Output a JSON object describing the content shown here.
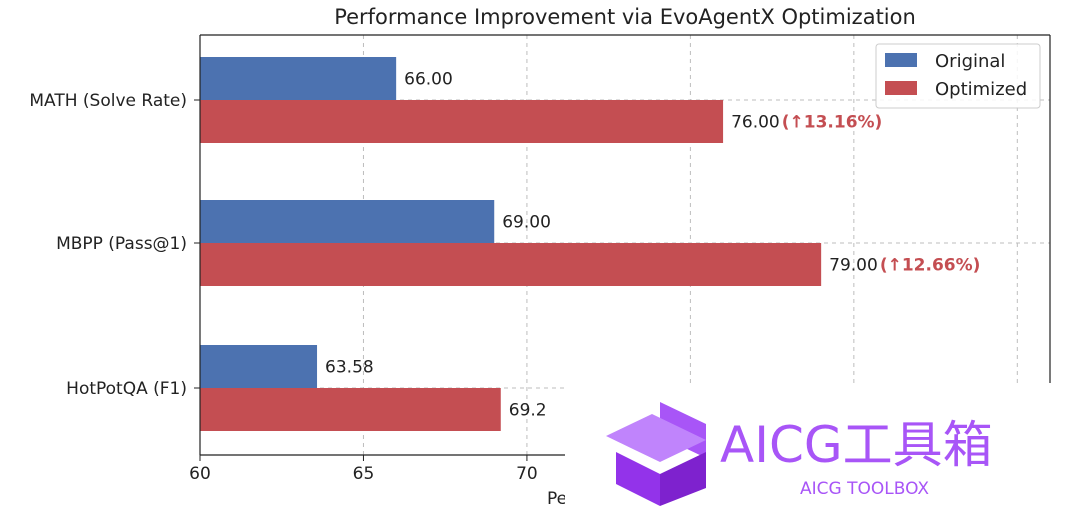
{
  "chart_data": {
    "type": "bar",
    "orientation": "horizontal",
    "title": "Performance Improvement via EvoAgentX Optimization",
    "xlabel": "Pe",
    "categories": [
      "MATH (Solve Rate)",
      "MBPP (Pass@1)",
      "HotPotQA (F1)"
    ],
    "series": [
      {
        "name": "Original",
        "color": "#4c72b0",
        "values": [
          66.0,
          69.0,
          63.58
        ],
        "labels": [
          "66.00",
          "69.00",
          "63.58"
        ]
      },
      {
        "name": "Optimized",
        "color": "#c44e52",
        "values": [
          76.0,
          79.0,
          69.2
        ],
        "labels": [
          "76.00",
          "79.00",
          "69.2"
        ]
      }
    ],
    "improvements": [
      "(↑13.16%)",
      "(↑12.66%)",
      ""
    ],
    "xticks": [
      60,
      65,
      70
    ],
    "xtick_labels": [
      "60",
      "65",
      "70"
    ],
    "xlim": [
      60,
      86
    ],
    "grid": true,
    "legend_position": "top-right"
  },
  "watermark": {
    "brand": "AICG工具箱",
    "sub": "AICG TOOLBOX",
    "color": "#a855f7"
  }
}
